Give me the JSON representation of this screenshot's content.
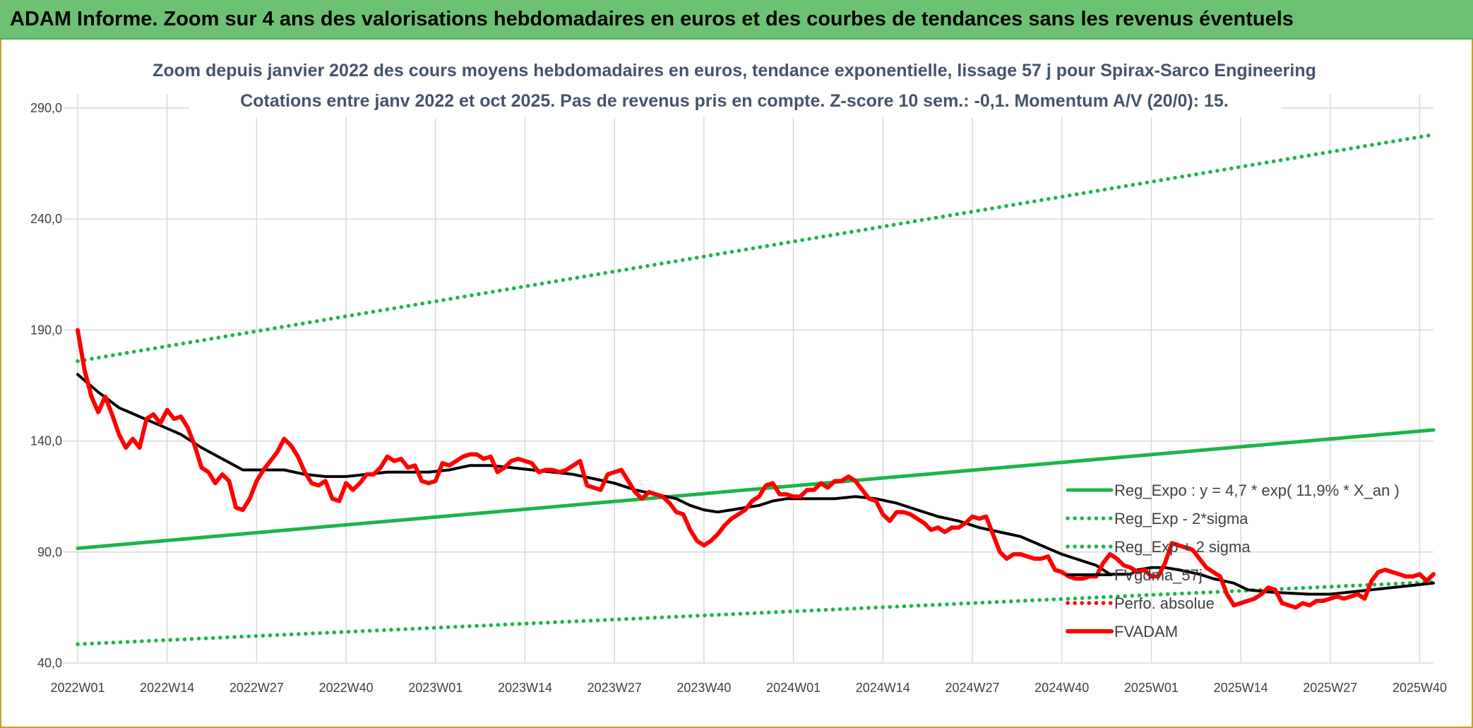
{
  "banner": {
    "text": "ADAM Informe. Zoom sur 4 ans des valorisations hebdomadaires en euros et des courbes de tendances sans les revenus éventuels"
  },
  "colors": {
    "banner_bg": "#6dc173",
    "trend_green": "#1db44a",
    "price_red": "#ff0000",
    "smooth_black": "#000000",
    "title_blue_gray": "#44546a",
    "grid": "#d9d9d9"
  },
  "chart_data": {
    "type": "line",
    "title": "Zoom depuis janvier 2022 des cours moyens hebdomadaires en euros, tendance exponentielle, lissage 57 j pour Spirax-Sarco Engineering",
    "subtitle": "Cotations entre janv 2022 et oct 2025. Pas de revenus pris en compte. Z-score 10 sem.: -0,1. Momentum A/V (20/0): 15.",
    "xlabel": "",
    "ylabel": "",
    "x_unit": "week_index (0 = 2022W01)",
    "x_range": [
      0,
      197
    ],
    "ylim": [
      40,
      290
    ],
    "y_ticks": [
      40,
      90,
      140,
      190,
      240,
      290
    ],
    "y_tick_labels": [
      "40,0",
      "90,0",
      "140,0",
      "190,0",
      "240,0",
      "290,0"
    ],
    "x_ticks": [
      {
        "week": 0,
        "label": "2022W01"
      },
      {
        "week": 13,
        "label": "2022W14"
      },
      {
        "week": 26,
        "label": "2022W27"
      },
      {
        "week": 39,
        "label": "2022W40"
      },
      {
        "week": 52,
        "label": "2023W01"
      },
      {
        "week": 65,
        "label": "2023W14"
      },
      {
        "week": 78,
        "label": "2023W27"
      },
      {
        "week": 91,
        "label": "2023W40"
      },
      {
        "week": 104,
        "label": "2024W01"
      },
      {
        "week": 117,
        "label": "2024W14"
      },
      {
        "week": 130,
        "label": "2024W27"
      },
      {
        "week": 143,
        "label": "2024W40"
      },
      {
        "week": 156,
        "label": "2025W01"
      },
      {
        "week": 169,
        "label": "2025W14"
      },
      {
        "week": 182,
        "label": "2025W27"
      },
      {
        "week": 195,
        "label": "2025W40"
      }
    ],
    "grid": true,
    "legend_position": "right",
    "series": [
      {
        "name": "Reg_Expo : y = 4,7 * exp( 11,9% *  X_an )",
        "style": "solid",
        "color": "#1db44a",
        "width": 5,
        "points": [
          [
            0,
            91.7
          ],
          [
            197,
            145
          ]
        ]
      },
      {
        "name": "Reg_Exp - 2*sigma",
        "style": "dotted",
        "color": "#1db44a",
        "width": 5,
        "points": [
          [
            0,
            48.5
          ],
          [
            197,
            76.5
          ]
        ]
      },
      {
        "name": "Reg_Exp + 2 sigma",
        "style": "dotted",
        "color": "#1db44a",
        "width": 5,
        "points": [
          [
            0,
            176
          ],
          [
            197,
            278
          ]
        ]
      },
      {
        "name": "FVgdma_57j",
        "style": "solid",
        "color": "#000000",
        "width": 4,
        "points": [
          [
            0,
            170
          ],
          [
            3,
            162
          ],
          [
            6,
            155
          ],
          [
            9,
            151
          ],
          [
            12,
            147
          ],
          [
            15,
            143
          ],
          [
            18,
            137
          ],
          [
            21,
            132
          ],
          [
            24,
            127
          ],
          [
            27,
            127
          ],
          [
            30,
            127
          ],
          [
            33,
            125
          ],
          [
            36,
            124
          ],
          [
            39,
            124
          ],
          [
            42,
            125
          ],
          [
            45,
            126
          ],
          [
            48,
            126
          ],
          [
            51,
            126
          ],
          [
            54,
            127
          ],
          [
            57,
            129
          ],
          [
            60,
            129
          ],
          [
            63,
            128
          ],
          [
            66,
            127
          ],
          [
            69,
            126
          ],
          [
            72,
            125
          ],
          [
            75,
            123
          ],
          [
            78,
            121
          ],
          [
            81,
            118
          ],
          [
            84,
            116
          ],
          [
            87,
            114
          ],
          [
            89,
            111
          ],
          [
            91,
            109
          ],
          [
            93,
            108
          ],
          [
            95,
            109
          ],
          [
            97,
            110
          ],
          [
            99,
            111
          ],
          [
            101,
            113
          ],
          [
            103,
            114
          ],
          [
            105,
            114
          ],
          [
            107,
            114
          ],
          [
            110,
            114
          ],
          [
            113,
            115
          ],
          [
            116,
            114
          ],
          [
            119,
            112
          ],
          [
            122,
            109
          ],
          [
            125,
            106
          ],
          [
            128,
            104
          ],
          [
            131,
            101
          ],
          [
            134,
            99
          ],
          [
            137,
            97
          ],
          [
            140,
            93
          ],
          [
            143,
            89
          ],
          [
            146,
            86
          ],
          [
            148,
            84
          ],
          [
            150,
            80
          ],
          [
            152,
            80
          ],
          [
            153,
            80
          ],
          [
            154,
            82
          ],
          [
            156,
            83
          ],
          [
            158,
            83
          ],
          [
            160,
            82
          ],
          [
            163,
            80
          ],
          [
            165,
            78
          ],
          [
            168,
            76
          ],
          [
            170,
            73
          ],
          [
            173,
            72
          ],
          [
            176,
            71.5
          ],
          [
            179,
            71
          ],
          [
            182,
            71
          ],
          [
            185,
            72
          ],
          [
            188,
            73
          ],
          [
            191,
            74
          ],
          [
            194,
            75
          ],
          [
            197,
            76
          ]
        ]
      },
      {
        "name": "Perfo. absolue",
        "style": "dotted",
        "color": "#ff0000",
        "width": 3,
        "points": []
      },
      {
        "name": "FVADAM",
        "style": "solid",
        "color": "#ff0000",
        "width": 6,
        "points": [
          [
            0,
            190
          ],
          [
            1,
            172
          ],
          [
            2,
            160
          ],
          [
            3,
            153
          ],
          [
            4,
            160
          ],
          [
            5,
            152
          ],
          [
            6,
            143
          ],
          [
            7,
            137
          ],
          [
            8,
            141
          ],
          [
            9,
            137
          ],
          [
            10,
            150
          ],
          [
            11,
            152
          ],
          [
            12,
            148
          ],
          [
            13,
            154
          ],
          [
            14,
            150
          ],
          [
            15,
            151
          ],
          [
            16,
            146
          ],
          [
            17,
            138
          ],
          [
            18,
            128
          ],
          [
            19,
            126
          ],
          [
            20,
            121
          ],
          [
            21,
            125
          ],
          [
            22,
            122
          ],
          [
            23,
            110
          ],
          [
            24,
            109
          ],
          [
            25,
            114
          ],
          [
            26,
            122
          ],
          [
            27,
            127
          ],
          [
            28,
            131
          ],
          [
            29,
            135
          ],
          [
            30,
            141
          ],
          [
            31,
            138
          ],
          [
            32,
            133
          ],
          [
            33,
            126
          ],
          [
            34,
            121
          ],
          [
            35,
            120
          ],
          [
            36,
            122
          ],
          [
            37,
            114
          ],
          [
            38,
            113
          ],
          [
            39,
            121
          ],
          [
            40,
            118
          ],
          [
            41,
            121
          ],
          [
            42,
            125
          ],
          [
            43,
            125
          ],
          [
            44,
            128
          ],
          [
            45,
            133
          ],
          [
            46,
            131
          ],
          [
            47,
            132
          ],
          [
            48,
            128
          ],
          [
            49,
            129
          ],
          [
            50,
            122
          ],
          [
            51,
            121
          ],
          [
            52,
            122
          ],
          [
            53,
            130
          ],
          [
            54,
            129
          ],
          [
            55,
            131
          ],
          [
            56,
            133
          ],
          [
            57,
            134
          ],
          [
            58,
            134
          ],
          [
            59,
            132
          ],
          [
            60,
            133
          ],
          [
            61,
            126
          ],
          [
            62,
            128
          ],
          [
            63,
            131
          ],
          [
            64,
            132
          ],
          [
            65,
            131
          ],
          [
            66,
            130
          ],
          [
            67,
            126
          ],
          [
            68,
            127
          ],
          [
            69,
            127
          ],
          [
            70,
            126
          ],
          [
            71,
            127
          ],
          [
            72,
            129
          ],
          [
            73,
            131
          ],
          [
            74,
            120
          ],
          [
            75,
            119
          ],
          [
            76,
            118
          ],
          [
            77,
            125
          ],
          [
            78,
            126
          ],
          [
            79,
            127
          ],
          [
            80,
            122
          ],
          [
            81,
            117
          ],
          [
            82,
            114
          ],
          [
            83,
            117
          ],
          [
            84,
            116
          ],
          [
            85,
            115
          ],
          [
            86,
            112
          ],
          [
            87,
            108
          ],
          [
            88,
            107
          ],
          [
            89,
            100
          ],
          [
            90,
            95
          ],
          [
            91,
            93
          ],
          [
            92,
            95
          ],
          [
            93,
            98
          ],
          [
            94,
            102
          ],
          [
            95,
            105
          ],
          [
            96,
            107
          ],
          [
            97,
            109
          ],
          [
            98,
            113
          ],
          [
            99,
            115
          ],
          [
            100,
            120
          ],
          [
            101,
            121
          ],
          [
            102,
            116
          ],
          [
            103,
            116
          ],
          [
            104,
            115
          ],
          [
            105,
            115
          ],
          [
            106,
            118
          ],
          [
            107,
            118
          ],
          [
            108,
            121
          ],
          [
            109,
            119
          ],
          [
            110,
            122
          ],
          [
            111,
            122
          ],
          [
            112,
            124
          ],
          [
            113,
            122
          ],
          [
            114,
            118
          ],
          [
            115,
            114
          ],
          [
            116,
            113
          ],
          [
            117,
            107
          ],
          [
            118,
            104
          ],
          [
            119,
            108
          ],
          [
            120,
            108
          ],
          [
            121,
            107
          ],
          [
            122,
            105
          ],
          [
            123,
            103
          ],
          [
            124,
            100
          ],
          [
            125,
            101
          ],
          [
            126,
            99
          ],
          [
            127,
            101
          ],
          [
            128,
            101
          ],
          [
            129,
            103
          ],
          [
            130,
            106
          ],
          [
            131,
            105
          ],
          [
            132,
            106
          ],
          [
            133,
            98
          ],
          [
            134,
            90
          ],
          [
            135,
            87
          ],
          [
            136,
            89
          ],
          [
            137,
            89
          ],
          [
            138,
            88
          ],
          [
            139,
            87
          ],
          [
            140,
            87
          ],
          [
            141,
            88
          ],
          [
            142,
            82
          ],
          [
            143,
            81
          ],
          [
            144,
            79
          ],
          [
            145,
            78
          ],
          [
            146,
            78
          ],
          [
            147,
            79
          ],
          [
            148,
            79
          ],
          [
            149,
            85
          ],
          [
            150,
            89
          ],
          [
            151,
            87
          ],
          [
            152,
            84
          ],
          [
            153,
            83
          ],
          [
            154,
            81
          ],
          [
            155,
            82
          ],
          [
            156,
            79
          ],
          [
            157,
            79
          ],
          [
            158,
            85
          ],
          [
            159,
            94
          ],
          [
            160,
            93
          ],
          [
            161,
            92
          ],
          [
            162,
            91
          ],
          [
            163,
            87
          ],
          [
            164,
            83
          ],
          [
            165,
            81
          ],
          [
            166,
            79
          ],
          [
            167,
            71
          ],
          [
            168,
            66
          ],
          [
            169,
            67
          ],
          [
            170,
            68
          ],
          [
            171,
            69
          ],
          [
            172,
            71
          ],
          [
            173,
            74
          ],
          [
            174,
            73
          ],
          [
            175,
            67
          ],
          [
            176,
            66
          ],
          [
            177,
            65
          ],
          [
            178,
            67
          ],
          [
            179,
            66
          ],
          [
            180,
            68
          ],
          [
            181,
            68
          ],
          [
            182,
            69
          ],
          [
            183,
            70
          ],
          [
            184,
            69
          ],
          [
            185,
            70
          ],
          [
            186,
            71
          ],
          [
            187,
            69
          ],
          [
            188,
            77
          ],
          [
            189,
            81
          ],
          [
            190,
            82
          ],
          [
            191,
            81
          ],
          [
            192,
            80
          ],
          [
            193,
            79
          ],
          [
            194,
            79
          ],
          [
            195,
            80
          ],
          [
            196,
            77
          ],
          [
            197,
            80
          ]
        ]
      }
    ]
  }
}
